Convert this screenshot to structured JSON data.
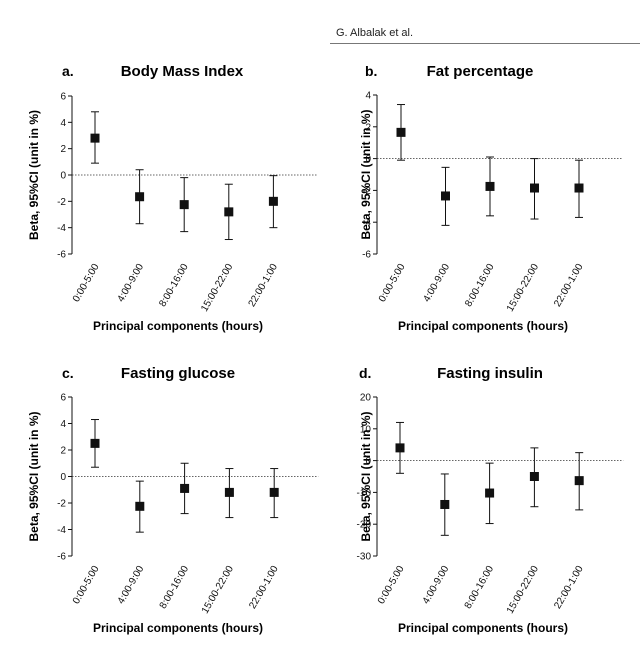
{
  "header": {
    "author": "G. Albalak et al."
  },
  "chart_data": [
    {
      "type": "scatter",
      "letter": "a.",
      "title": "Body Mass Index",
      "ylabel": "Beta, 95%CI (unit in %)",
      "xlabel": "Principal components (hours)",
      "categories": [
        "0:00-5:00",
        "4:00-9:00",
        "8:00-16:00",
        "15:00-22:00",
        "22:00-1:00"
      ],
      "values": [
        2.8,
        -1.65,
        -2.25,
        -2.8,
        -2.0
      ],
      "ci_low": [
        0.9,
        -3.7,
        -4.3,
        -4.9,
        -4.0
      ],
      "ci_high": [
        4.8,
        0.4,
        -0.2,
        -0.7,
        -0.05
      ],
      "ylim": [
        -6,
        6
      ],
      "yticks": [
        -6,
        -4,
        -2,
        0,
        2,
        4,
        6
      ],
      "reference_line": 0
    },
    {
      "type": "scatter",
      "letter": "b.",
      "title": "Fat percentage",
      "ylabel": "Beta, 95%CI (unit in %)",
      "xlabel": "Principal components (hours)",
      "categories": [
        "0:00-5:00",
        "4:00-9:00",
        "8:00-16:00",
        "15:00-22:00",
        "22:00-1:00"
      ],
      "values": [
        1.65,
        -2.35,
        -1.75,
        -1.85,
        -1.85
      ],
      "ci_low": [
        -0.1,
        -4.2,
        -3.6,
        -3.8,
        -3.7
      ],
      "ci_high": [
        3.4,
        -0.55,
        0.1,
        0.0,
        -0.1
      ],
      "ylim": [
        -6,
        4
      ],
      "yticks": [
        -6,
        -4,
        -2,
        0,
        2,
        4
      ],
      "reference_line": 0
    },
    {
      "type": "scatter",
      "letter": "c.",
      "title": "Fasting glucose",
      "ylabel": "Beta, 95%CI (unit in %)",
      "xlabel": "Principal components (hours)",
      "categories": [
        "0:00-5:00",
        "4:00-9:00",
        "8:00-16:00",
        "15:00-22:00",
        "22:00-1:00"
      ],
      "values": [
        2.5,
        -2.25,
        -0.9,
        -1.2,
        -1.2
      ],
      "ci_low": [
        0.7,
        -4.2,
        -2.8,
        -3.1,
        -3.1
      ],
      "ci_high": [
        4.3,
        -0.35,
        1.0,
        0.6,
        0.6
      ],
      "ylim": [
        -6,
        6
      ],
      "yticks": [
        -6,
        -4,
        -2,
        0,
        2,
        4,
        6
      ],
      "reference_line": 0
    },
    {
      "type": "scatter",
      "letter": "d.",
      "title": "Fasting insulin",
      "ylabel": "Beta, 95%CI (unit in %)",
      "xlabel": "Principal components (hours)",
      "categories": [
        "0:00-5:00",
        "4:00-9:00",
        "8:00-16:00",
        "15:00-22:00",
        "22:00-1:00"
      ],
      "values": [
        4.0,
        -13.8,
        -10.2,
        -5.0,
        -6.3
      ],
      "ci_low": [
        -4.0,
        -23.5,
        -19.8,
        -14.5,
        -15.5
      ],
      "ci_high": [
        12.0,
        -4.2,
        -0.8,
        4.0,
        2.5
      ],
      "ylim": [
        -30,
        20
      ],
      "yticks": [
        -30,
        -20,
        -10,
        0,
        10,
        20
      ],
      "reference_line": 0
    }
  ]
}
